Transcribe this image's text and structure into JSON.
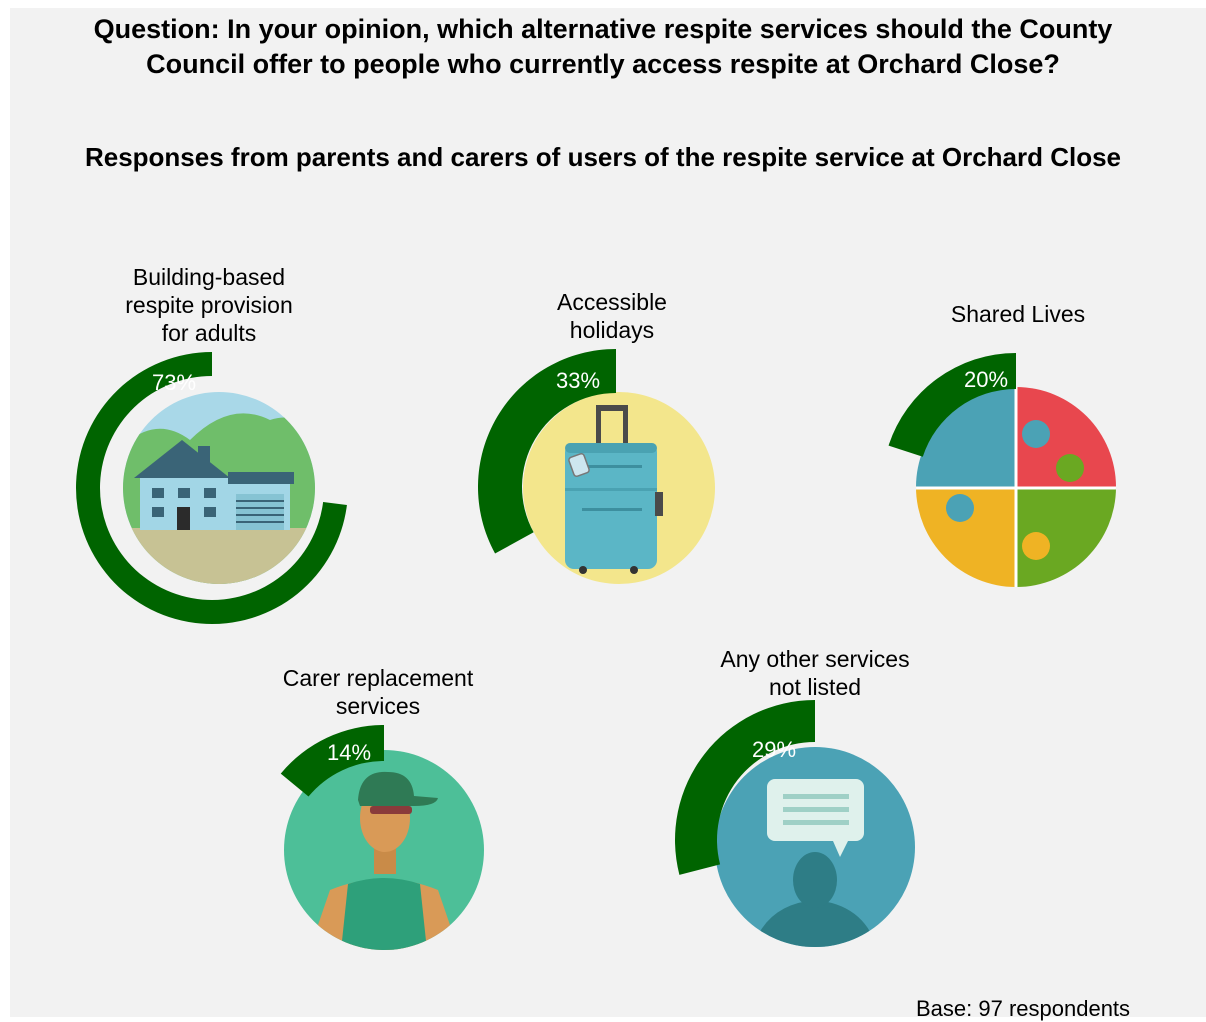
{
  "chart_data": {
    "type": "pie",
    "title_lines": [
      "Question: In your opinion, which alternative respite services should the County",
      "Council offer to people who currently access respite at Orchard Close?"
    ],
    "subtitle": "Responses from parents and carers of users of the respite service at Orchard Close",
    "items": [
      {
        "label_lines": [
          "Building-based",
          "respite provision",
          "for adults"
        ],
        "value": 73,
        "value_label": "73%",
        "icon": "house-icon"
      },
      {
        "label_lines": [
          "Accessible",
          "holidays"
        ],
        "value": 33,
        "value_label": "33%",
        "icon": "suitcase-icon"
      },
      {
        "label_lines": [
          "Shared Lives"
        ],
        "value": 20,
        "value_label": "20%",
        "icon": "puzzle-icon"
      },
      {
        "label_lines": [
          "Carer replacement",
          "services"
        ],
        "value": 14,
        "value_label": "14%",
        "icon": "carer-icon"
      },
      {
        "label_lines": [
          "Any other services",
          "not listed"
        ],
        "value": 29,
        "value_label": "29%",
        "icon": "speech-bubble-icon"
      }
    ],
    "base_note": "Base: 97 respondents"
  },
  "colors": {
    "ring": "#006400",
    "panel": "#f2f2f2"
  }
}
